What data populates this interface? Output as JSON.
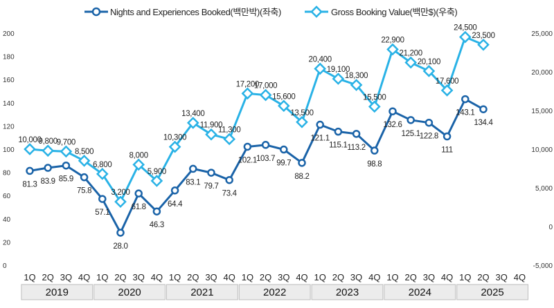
{
  "chart_data": {
    "type": "line",
    "categories": [
      "1Q",
      "2Q",
      "3Q",
      "4Q",
      "1Q",
      "2Q",
      "3Q",
      "4Q",
      "1Q",
      "2Q",
      "3Q",
      "4Q",
      "1Q",
      "2Q",
      "3Q",
      "4Q",
      "1Q",
      "2Q",
      "3Q",
      "4Q",
      "1Q",
      "2Q",
      "3Q",
      "4Q",
      "1Q",
      "2Q",
      "3Q",
      "4Q"
    ],
    "years": [
      "2019",
      "2020",
      "2021",
      "2022",
      "2023",
      "2024",
      "2025"
    ],
    "series": [
      {
        "name": "Nights and Experiences Booked(백만박)(좌축)",
        "axis": "left",
        "color": "#1a63a8",
        "values": [
          81.3,
          83.9,
          85.9,
          75.8,
          57.1,
          28.0,
          61.8,
          46.3,
          64.4,
          83.1,
          79.7,
          73.4,
          102.1,
          103.7,
          99.7,
          88.2,
          121.1,
          115.1,
          113.2,
          98.8,
          132.6,
          125.1,
          122.8,
          111,
          143.1,
          134.4,
          null,
          null
        ],
        "labels": [
          "81.3",
          "83.9",
          "85.9",
          "75.8",
          "57.1",
          "28.0",
          "61.8",
          "46.3",
          "64.4",
          "83.1",
          "79.7",
          "73.4",
          "102.1",
          "103.7",
          "99.7",
          "88.2",
          "121.1",
          "115.1",
          "113.2",
          "98.8",
          "132.6",
          "125.1",
          "122.8",
          "111",
          "143.1",
          "134.4",
          "",
          ""
        ]
      },
      {
        "name": "Gross Booking Value(백만$)(우축)",
        "axis": "right",
        "color": "#29b2e6",
        "values": [
          10000,
          9800,
          9700,
          8500,
          6800,
          3200,
          8000,
          5900,
          10300,
          13400,
          11900,
          11300,
          17200,
          17000,
          15600,
          13500,
          20400,
          19100,
          18300,
          15500,
          22900,
          21200,
          20100,
          17600,
          24500,
          23500,
          null,
          null
        ],
        "labels": [
          "10,000",
          "9,800",
          "9,700",
          "8,500",
          "6,800",
          "3,200",
          "8,000",
          "5,900",
          "10,300",
          "13,400",
          "11,900",
          "11,300",
          "17,200",
          "17,000",
          "15,600",
          "13,500",
          "20,400",
          "19,100",
          "18,300",
          "15,500",
          "22,900",
          "21,200",
          "20,100",
          "17,600",
          "24,500",
          "23,500",
          "",
          ""
        ]
      }
    ],
    "y_left": {
      "min": 0,
      "max": 200,
      "step": 20,
      "ticks": [
        "0",
        "20",
        "40",
        "60",
        "80",
        "100",
        "120",
        "140",
        "160",
        "180",
        "200"
      ]
    },
    "y_right": {
      "min": -5000,
      "max": 25000,
      "step": 5000,
      "ticks": [
        "-5,000",
        "0",
        "5,000",
        "10,000",
        "15,000",
        "20,000",
        "25,000"
      ]
    },
    "legend": "top",
    "grid": false
  }
}
